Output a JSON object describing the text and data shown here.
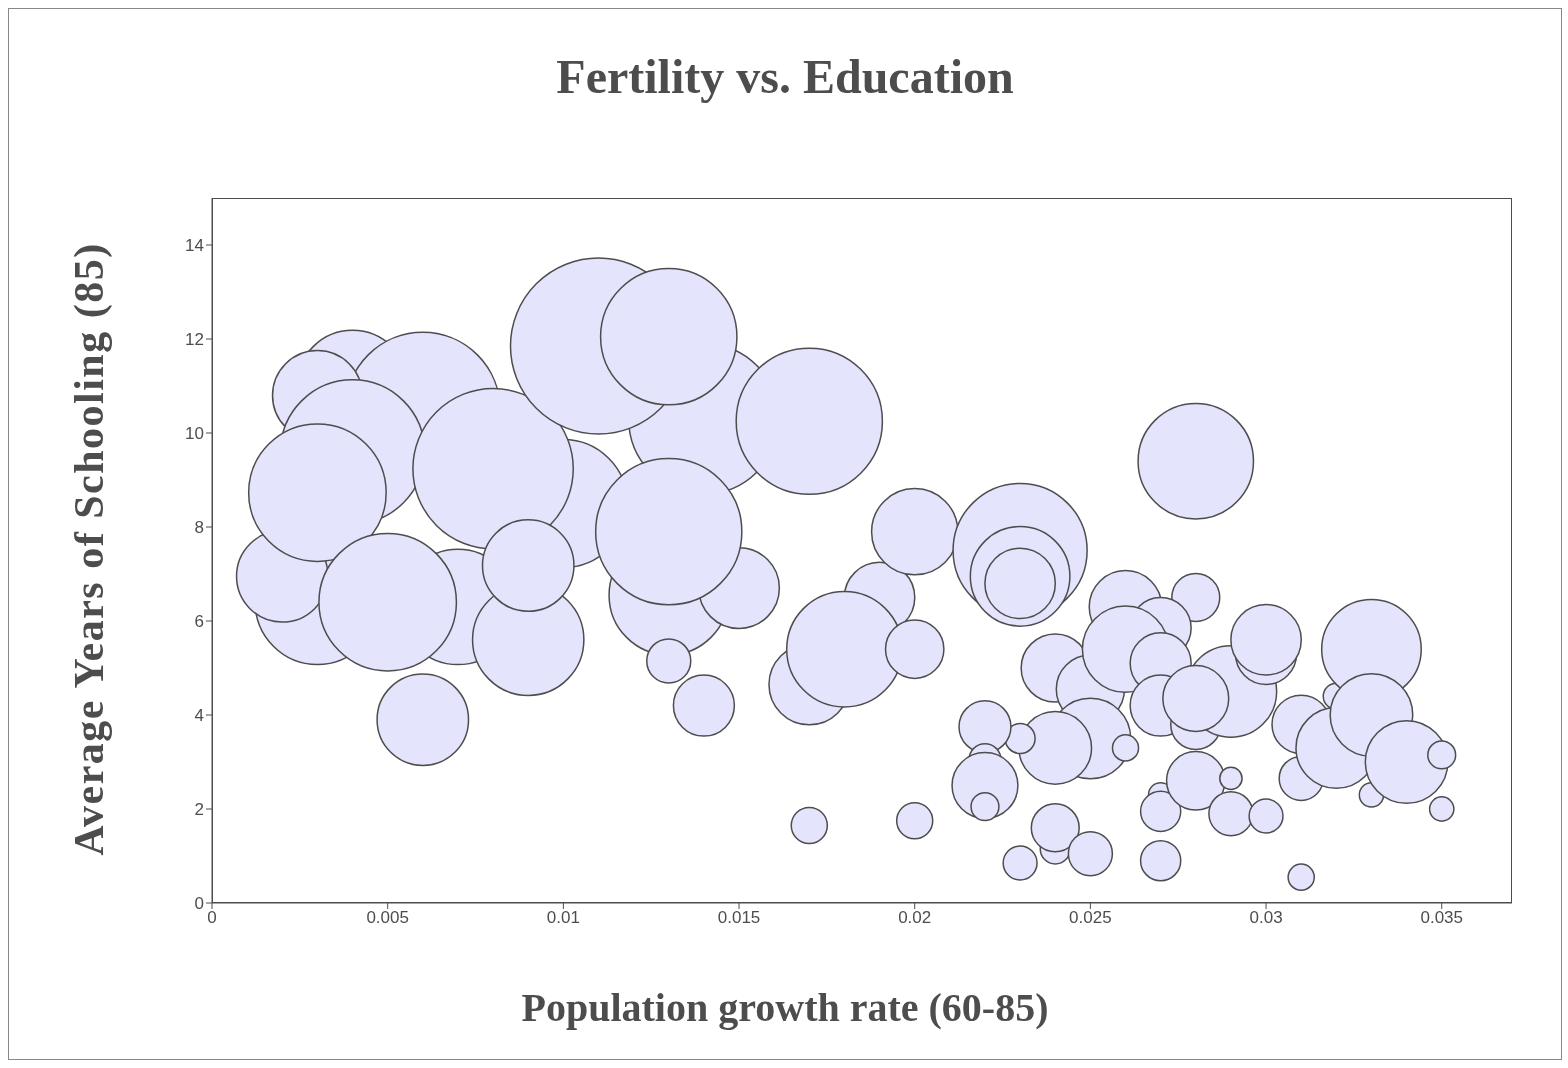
{
  "chart_data": {
    "type": "bubble",
    "title": "Fertility vs. Education",
    "xlabel": "Population growth rate (60-85)",
    "ylabel": "Average Years of Schooling (85)",
    "xlim": [
      0,
      0.037
    ],
    "xticks": [
      0,
      0.005,
      0.01,
      0.015,
      0.02,
      0.025,
      0.03,
      0.035
    ],
    "ylim": [
      0,
      15
    ],
    "yticks": [
      0,
      2,
      4,
      6,
      8,
      10,
      12,
      14
    ],
    "series": [
      {
        "color": "#e4e4fd",
        "x": [
          0.004,
          0.006,
          0.003,
          0.004,
          0.003,
          0.002,
          0.003,
          0.007,
          0.005,
          0.01,
          0.008,
          0.009,
          0.009,
          0.006,
          0.014,
          0.011,
          0.013,
          0.017,
          0.013,
          0.015,
          0.013,
          0.013,
          0.014,
          0.017,
          0.019,
          0.018,
          0.02,
          0.02,
          0.017,
          0.02,
          0.023,
          0.023,
          0.023,
          0.028,
          0.028,
          0.026,
          0.027,
          0.024,
          0.025,
          0.026,
          0.027,
          0.027,
          0.028,
          0.029,
          0.028,
          0.03,
          0.03,
          0.025,
          0.024,
          0.026,
          0.023,
          0.022,
          0.022,
          0.022,
          0.022,
          0.023,
          0.024,
          0.024,
          0.025,
          0.027,
          0.027,
          0.027,
          0.028,
          0.029,
          0.029,
          0.03,
          0.031,
          0.031,
          0.031,
          0.032,
          0.032,
          0.033,
          0.033,
          0.033,
          0.034,
          0.035,
          0.035
        ],
        "values": [
          11.0,
          10.5,
          10.8,
          9.6,
          6.4,
          6.95,
          8.73,
          6.3,
          6.4,
          8.5,
          9.24,
          5.6,
          7.18,
          3.9,
          10.3,
          11.85,
          12.05,
          10.25,
          6.55,
          6.7,
          7.9,
          5.15,
          4.2,
          4.65,
          6.5,
          5.4,
          7.9,
          5.4,
          1.65,
          1.75,
          7.5,
          6.95,
          6.8,
          9.4,
          6.5,
          6.3,
          5.85,
          5.0,
          4.55,
          5.4,
          5.1,
          4.2,
          3.8,
          4.5,
          4.35,
          5.3,
          5.6,
          3.5,
          3.3,
          3.3,
          3.5,
          3.75,
          3.05,
          2.5,
          2.05,
          0.85,
          1.15,
          1.6,
          1.05,
          2.3,
          1.95,
          0.9,
          2.6,
          2.65,
          1.9,
          1.85,
          3.8,
          2.65,
          0.55,
          4.4,
          3.3,
          5.4,
          4.0,
          2.3,
          3.0,
          3.15,
          2.0
        ],
        "sizes": [
          0.4,
          0.77,
          0.26,
          0.67,
          0.5,
          0.27,
          0.61,
          0.43,
          0.61,
          0.53,
          0.83,
          0.4,
          0.27,
          0.27,
          0.73,
          1,
          0.6,
          0.69,
          0.46,
          0.21,
          0.69,
          0.0625,
          0.12,
          0.21,
          0.16,
          0.43,
          0.24,
          0.11,
          0.042,
          0.042,
          0.58,
          0.32,
          0.16,
          0.43,
          0.074,
          0.17,
          0.12,
          0.15,
          0.15,
          0.24,
          0.12,
          0.12,
          0.081,
          0.27,
          0.14,
          0.12,
          0.16,
          0.21,
          0.17,
          0.022,
          0.029,
          0.087,
          0.033,
          0.14,
          0.025,
          0.037,
          0.029,
          0.074,
          0.0625,
          0.019,
          0.052,
          0.052,
          0.11,
          0.016,
          0.0625,
          0.037,
          0.11,
          0.0625,
          0.022,
          0.022,
          0.21,
          0.32,
          0.22,
          0.019,
          0.22,
          0.025,
          0.019
        ]
      }
    ]
  }
}
